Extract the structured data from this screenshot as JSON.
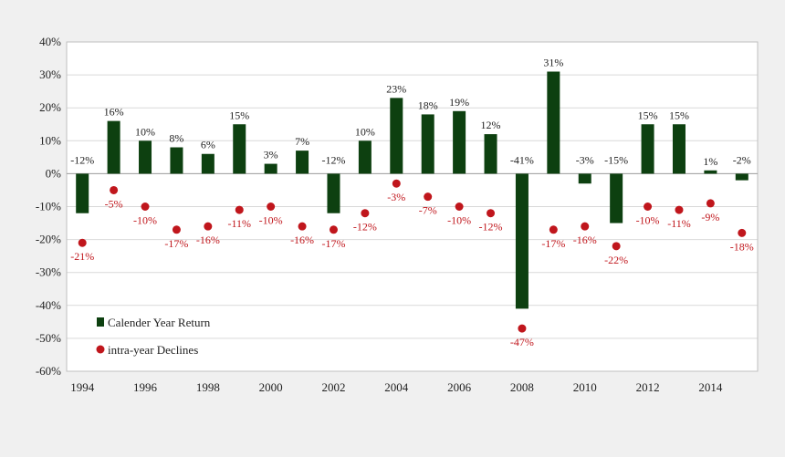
{
  "chart_data": {
    "type": "bar",
    "title": "",
    "xlabel": "",
    "ylabel": "",
    "ylim": [
      -60,
      40
    ],
    "yticks": [
      "40%",
      "30%",
      "20%",
      "10%",
      "0%",
      "-10%",
      "-20%",
      "-30%",
      "-40%",
      "-50%",
      "-60%"
    ],
    "ytick_values": [
      40,
      30,
      20,
      10,
      0,
      -10,
      -20,
      -30,
      -40,
      -50,
      -60
    ],
    "xtick_labels": [
      "1994",
      "1996",
      "1998",
      "2000",
      "2002",
      "2004",
      "2006",
      "2008",
      "2010",
      "2012",
      "2014"
    ],
    "grid": true,
    "legend_position": "bottom-left",
    "categories": [
      1994,
      1995,
      1996,
      1997,
      1998,
      1999,
      2000,
      2001,
      2002,
      2003,
      2004,
      2005,
      2006,
      2007,
      2008,
      2009,
      2010,
      2011,
      2012,
      2013,
      2014,
      2015
    ],
    "series": [
      {
        "name": "Calender Year Return",
        "kind": "bar",
        "color": "#0d4010",
        "values": [
          -12,
          16,
          10,
          8,
          6,
          15,
          3,
          7,
          -12,
          10,
          23,
          18,
          19,
          12,
          -41,
          31,
          -3,
          -15,
          15,
          15,
          1,
          -2
        ],
        "labels": [
          "-12%",
          "16%",
          "10%",
          "8%",
          "6%",
          "15%",
          "3%",
          "7%",
          "-12%",
          "10%",
          "23%",
          "18%",
          "19%",
          "12%",
          "-41%",
          "31%",
          "-3%",
          "-15%",
          "15%",
          "15%",
          "1%",
          "-2%"
        ]
      },
      {
        "name": "intra-year Declines",
        "kind": "scatter",
        "color": "#c0161c",
        "values": [
          -21,
          -5,
          -10,
          -17,
          -16,
          -11,
          -10,
          -16,
          -17,
          -12,
          -3,
          -7,
          -10,
          -12,
          -47,
          -17,
          -16,
          -22,
          -10,
          -11,
          -9,
          -18
        ],
        "labels": [
          "-21%",
          "-5%",
          "-10%",
          "-17%",
          "-16%",
          "-11%",
          "-10%",
          "-16%",
          "-17%",
          "-12%",
          "-3%",
          "-7%",
          "-10%",
          "-12%",
          "-47%",
          "-17%",
          "-16%",
          "-22%",
          "-10%",
          "-11%",
          "-9%",
          "-18%"
        ]
      }
    ]
  }
}
